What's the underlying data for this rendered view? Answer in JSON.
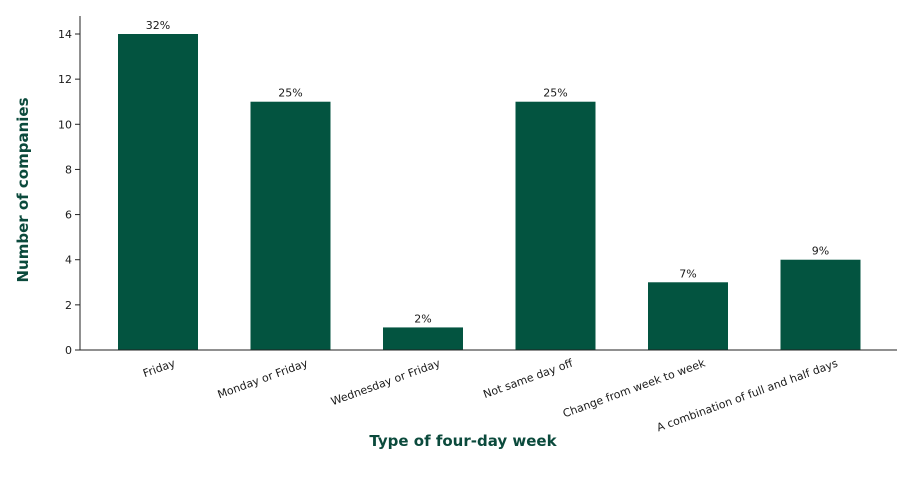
{
  "chart_data": {
    "type": "bar",
    "categories": [
      "Friday",
      "Monday or Friday",
      "Wednesday or Friday",
      "Not same day off",
      "Change from week to week",
      "A combination of full and half days"
    ],
    "values": [
      14,
      11,
      1,
      11,
      3,
      4
    ],
    "data_labels": [
      "32%",
      "25%",
      "2%",
      "25%",
      "7%",
      "9%"
    ],
    "xlabel": "Type of four-day week",
    "ylabel": "Number of companies",
    "ylim": [
      0,
      14
    ],
    "yticks": [
      "0",
      "2",
      "4",
      "6",
      "8",
      "10",
      "12",
      "14"
    ],
    "grid": false,
    "bar_color": "#035440",
    "title_color": "#0b4a3c"
  }
}
